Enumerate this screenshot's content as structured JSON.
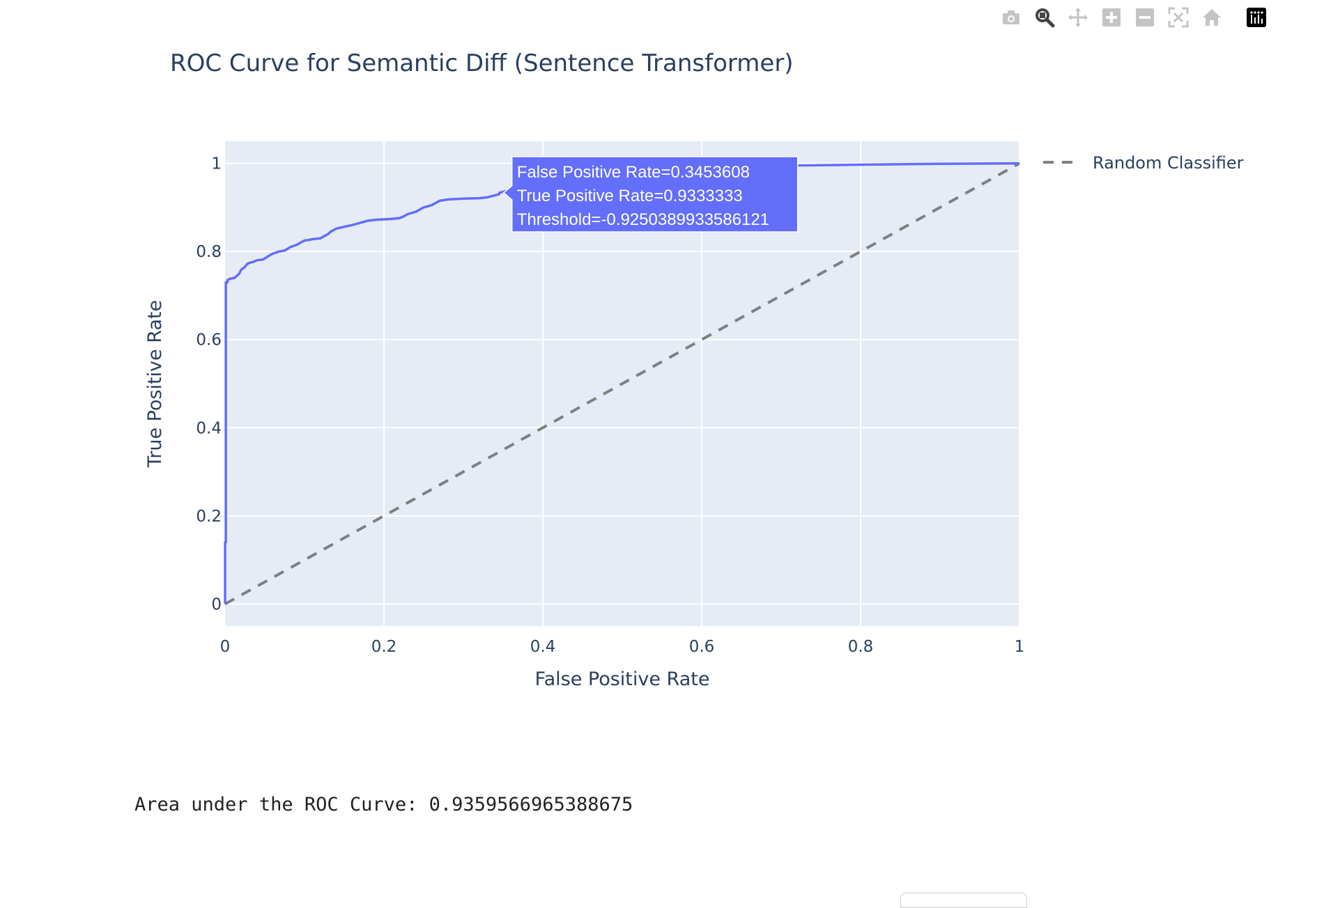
{
  "modebar": {
    "buttons": [
      "camera-icon",
      "zoom-icon",
      "pan-icon",
      "zoom-in-icon",
      "zoom-out-icon",
      "autoscale-icon",
      "home-icon",
      "plotly-logo-icon"
    ],
    "active_color": "#444444",
    "inactive_color": "#c4c4c4"
  },
  "chart_data": {
    "type": "line",
    "title": "ROC Curve for Semantic Diff (Sentence Transformer)",
    "xlabel": "False Positive Rate",
    "ylabel": "True Positive Rate",
    "xlim": [
      0,
      1
    ],
    "ylim": [
      -0.05,
      1.05
    ],
    "x_ticks": [
      "0",
      "0.2",
      "0.4",
      "0.6",
      "0.8",
      "1"
    ],
    "y_ticks": [
      "0",
      "0.2",
      "0.4",
      "0.6",
      "0.8",
      "1"
    ],
    "grid": true,
    "legend_position": "top-right",
    "series": [
      {
        "color": "#636efa",
        "dash": "solid",
        "x": [
          0,
          0,
          0.001,
          0.001,
          0.003,
          0.003,
          0.006,
          0.012,
          0.015,
          0.018,
          0.02,
          0.025,
          0.028,
          0.032,
          0.035,
          0.04,
          0.048,
          0.055,
          0.06,
          0.068,
          0.075,
          0.082,
          0.09,
          0.095,
          0.1,
          0.105,
          0.11,
          0.12,
          0.13,
          0.133,
          0.138,
          0.14,
          0.15,
          0.16,
          0.17,
          0.18,
          0.19,
          0.2,
          0.21,
          0.22,
          0.225,
          0.23,
          0.24,
          0.25,
          0.26,
          0.27,
          0.28,
          0.3,
          0.32,
          0.33,
          0.345,
          0.3453608,
          0.36,
          0.4,
          0.5,
          0.6,
          0.7,
          0.75,
          0.8,
          0.85,
          0.9,
          1
        ],
        "y": [
          0,
          0.14,
          0.14,
          0.73,
          0.73,
          0.735,
          0.738,
          0.74,
          0.745,
          0.75,
          0.758,
          0.765,
          0.772,
          0.775,
          0.776,
          0.78,
          0.782,
          0.79,
          0.795,
          0.8,
          0.802,
          0.81,
          0.815,
          0.82,
          0.825,
          0.826,
          0.828,
          0.83,
          0.84,
          0.845,
          0.85,
          0.852,
          0.856,
          0.86,
          0.865,
          0.87,
          0.872,
          0.873,
          0.874,
          0.876,
          0.88,
          0.885,
          0.89,
          0.9,
          0.905,
          0.915,
          0.918,
          0.92,
          0.921,
          0.923,
          0.93,
          0.9333333,
          0.94,
          0.96,
          0.98,
          0.99,
          0.995,
          0.996,
          0.997,
          0.998,
          0.999,
          1
        ]
      },
      {
        "name": "Random Classifier",
        "color": "#7f7f7f",
        "dash": "dash",
        "x": [
          0,
          1
        ],
        "y": [
          0,
          1
        ]
      }
    ],
    "hover": {
      "lines": [
        "False Positive Rate=0.3453608",
        "True Positive Rate=0.9333333",
        "Threshold=-0.9250389933586121"
      ],
      "x": 0.3453608,
      "y": 0.9333333,
      "bg_color": "#636efa"
    }
  },
  "output": {
    "text": "Area under the ROC Curve: 0.9359566965388675"
  }
}
